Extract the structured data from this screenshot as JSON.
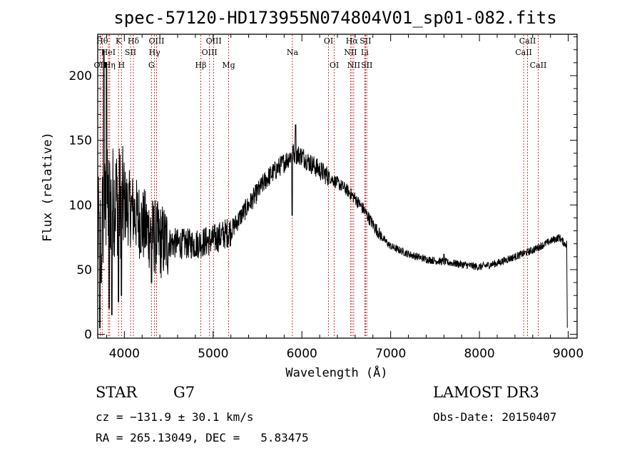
{
  "chart_data": {
    "type": "line",
    "title": "spec-57120-HD173955N074804V01_sp01-082.fits",
    "xlabel": "Wavelength (Å)",
    "ylabel": "Flux (relative)",
    "xlim": [
      3700,
      9100
    ],
    "ylim": [
      -3,
      232
    ],
    "xticks": [
      4000,
      5000,
      6000,
      7000,
      8000,
      9000
    ],
    "xtick_labels": [
      "4000",
      "5000",
      "6000",
      "7000",
      "8000",
      "9000"
    ],
    "yticks": [
      0,
      50,
      100,
      150,
      200
    ],
    "ytick_labels": [
      "0",
      "50",
      "100",
      "150",
      "200"
    ],
    "line_color": "#000000",
    "marker_color": "#cc0000",
    "continuum": [
      [
        3700,
        75
      ],
      [
        3800,
        100
      ],
      [
        3900,
        105
      ],
      [
        4000,
        100
      ],
      [
        4100,
        95
      ],
      [
        4200,
        85
      ],
      [
        4300,
        78
      ],
      [
        4400,
        72
      ],
      [
        4600,
        70
      ],
      [
        4800,
        70
      ],
      [
        5000,
        73
      ],
      [
        5200,
        80
      ],
      [
        5400,
        100
      ],
      [
        5600,
        120
      ],
      [
        5800,
        133
      ],
      [
        5900,
        140
      ],
      [
        6000,
        138
      ],
      [
        6100,
        132
      ],
      [
        6200,
        127
      ],
      [
        6300,
        122
      ],
      [
        6400,
        117
      ],
      [
        6500,
        112
      ],
      [
        6600,
        105
      ],
      [
        6700,
        96
      ],
      [
        6800,
        85
      ],
      [
        6900,
        75
      ],
      [
        7000,
        68
      ],
      [
        7200,
        62
      ],
      [
        7400,
        58
      ],
      [
        7600,
        56
      ],
      [
        7800,
        54
      ],
      [
        8000,
        52
      ],
      [
        8200,
        55
      ],
      [
        8400,
        60
      ],
      [
        8600,
        65
      ],
      [
        8800,
        72
      ],
      [
        8900,
        75
      ],
      [
        8960,
        70
      ]
    ],
    "features": [
      {
        "x": 3725,
        "y": 5
      },
      {
        "x": 3740,
        "y": 40
      },
      {
        "x": 3770,
        "y": 220
      },
      {
        "x": 3800,
        "y": 210
      },
      {
        "x": 3830,
        "y": 20
      },
      {
        "x": 3860,
        "y": 15
      },
      {
        "x": 3934,
        "y": 25
      },
      {
        "x": 3968,
        "y": 30
      },
      {
        "x": 4305,
        "y": 40
      },
      {
        "x": 5890,
        "y": 92
      },
      {
        "x": 5930,
        "y": 162
      },
      {
        "x": 7600,
        "y": 62
      },
      {
        "x": 8990,
        "y": 5
      }
    ],
    "lines": [
      {
        "label": "OII",
        "x": 3727,
        "row": 3
      },
      {
        "label": "Hθ",
        "x": 3750,
        "row": 1
      },
      {
        "label": "HeI",
        "x": 3820,
        "row": 2
      },
      {
        "label": "Hη",
        "x": 3835,
        "row": 3
      },
      {
        "label": "K",
        "x": 3934,
        "row": 1
      },
      {
        "label": "SII",
        "x": 4070,
        "row": 2
      },
      {
        "label": "H",
        "x": 3968,
        "row": 3
      },
      {
        "label": "Hδ",
        "x": 4102,
        "row": 1
      },
      {
        "label": "OIII",
        "x": 4363,
        "row": 1
      },
      {
        "label": "Hγ",
        "x": 4340,
        "row": 2
      },
      {
        "label": "G",
        "x": 4305,
        "row": 3
      },
      {
        "label": "Hβ",
        "x": 4861,
        "row": 3
      },
      {
        "label": "OIII",
        "x": 5007,
        "row": 1
      },
      {
        "label": "OIII",
        "x": 4959,
        "row": 2
      },
      {
        "label": "Mg",
        "x": 5175,
        "row": 3
      },
      {
        "label": "Na",
        "x": 5893,
        "row": 2
      },
      {
        "label": "OI",
        "x": 6300,
        "row": 1
      },
      {
        "label": "OI",
        "x": 6364,
        "row": 3
      },
      {
        "label": "Hα",
        "x": 6563,
        "row": 1
      },
      {
        "label": "NII",
        "x": 6548,
        "row": 2
      },
      {
        "label": "NII",
        "x": 6584,
        "row": 3
      },
      {
        "label": "SII",
        "x": 6716,
        "row": 1
      },
      {
        "label": "Li",
        "x": 6708,
        "row": 2
      },
      {
        "label": "SII",
        "x": 6731,
        "row": 3
      },
      {
        "label": "CaII",
        "x": 8542,
        "row": 1
      },
      {
        "label": "CaII",
        "x": 8498,
        "row": 2
      },
      {
        "label": "CaII",
        "x": 8662,
        "row": 3
      }
    ]
  },
  "info": {
    "class": "STAR",
    "subclass": "G7",
    "cz": "cz = −131.9 ± 30.1 km/s",
    "coords": "RA = 265.13049, DEC =   5.83475",
    "survey": "LAMOST DR3",
    "obs_date": "Obs-Date: 20150407"
  }
}
